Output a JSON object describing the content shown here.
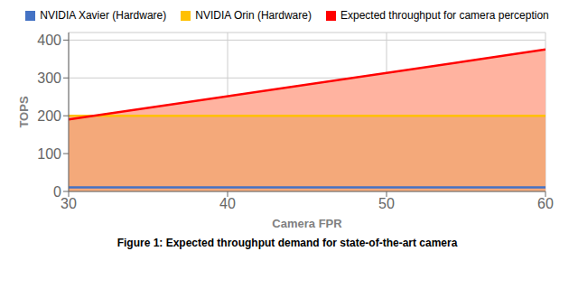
{
  "chart_data": {
    "type": "line",
    "caption": "Figure 1: Expected throughput demand for state-of-the-art camera",
    "x_label": "Camera FPR",
    "y_label": "TOPS",
    "x": [
      30,
      60
    ],
    "series": [
      {
        "type": "area",
        "color": "#F4A97A",
        "values": [
          190,
          375
        ]
      },
      {
        "type": "area",
        "color": "#FFB3A0",
        "values": [
          [
            200,
            190
          ],
          [
            200,
            375
          ]
        ]
      },
      {
        "type": "line",
        "name": "NVIDIA Xavier (Hardware)",
        "color": "#4472C4",
        "values": [
          11,
          11
        ]
      },
      {
        "type": "line",
        "name": "NVIDIA Orin (Hardware)",
        "color": "#FFC000",
        "values": [
          200,
          200
        ]
      },
      {
        "type": "line",
        "name": "Expected throughput for camera perception",
        "color": "#FF0000",
        "values": [
          190,
          375
        ]
      }
    ],
    "xlim": [
      30,
      60
    ],
    "ylim": [
      0,
      420
    ],
    "xticks": [
      30,
      40,
      50,
      60
    ],
    "yticks": [
      0,
      100,
      200,
      300,
      400
    ],
    "grid": true,
    "legend": "top"
  }
}
